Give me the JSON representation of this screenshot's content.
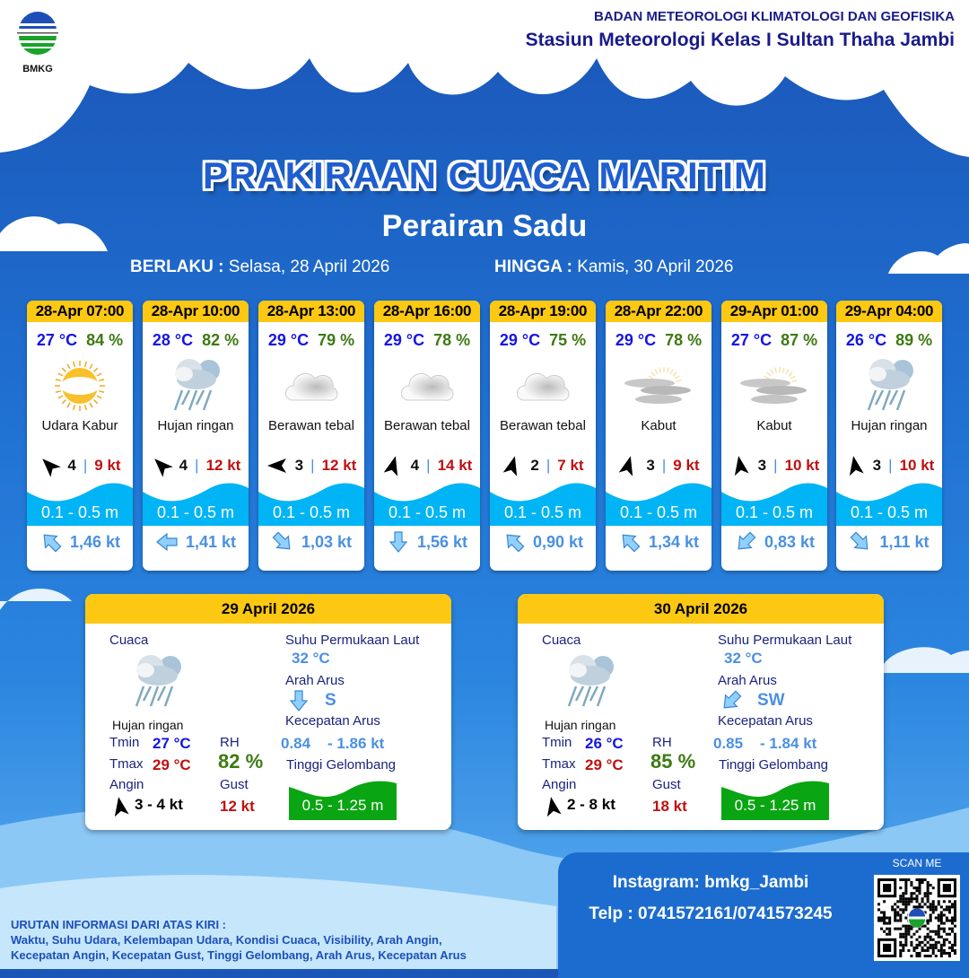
{
  "header": {
    "org": "BADAN METEOROLOGI KLIMATOLOGI DAN GEOFISIKA",
    "station": "Stasiun Meteorologi Kelas I Sultan Thaha Jambi",
    "logo_text": "BMKG"
  },
  "title": "PRAKIRAAN CUACA MARITIM",
  "area": "Perairan Sadu",
  "validity": {
    "from_label": "BERLAKU :",
    "from": "Selasa, 28 April 2026",
    "to_label": "HINGGA :",
    "to": "Kamis, 30 April 2026"
  },
  "colors": {
    "header_yellow": "#fcc812",
    "temp_blue": "#1414e6",
    "rh_green": "#3d7a12",
    "gust_red": "#c01010",
    "wave_cyan": "#00b4f5",
    "wave_green": "#0aa512",
    "current_blue": "#4a90e2"
  },
  "forecasts": [
    {
      "time": "28-Apr 07:00",
      "temp": "27 °C",
      "rh": "84 %",
      "weather": "Udara Kabur",
      "icon": "haze-icon",
      "wind_speed": "4",
      "wind_to_deg": -135,
      "gust": "9 kt",
      "wave": "0.1 - 0.5 m",
      "current_dir_deg": -45,
      "current": "1,46 kt"
    },
    {
      "time": "28-Apr 10:00",
      "temp": "28 °C",
      "rh": "82 %",
      "weather": "Hujan ringan",
      "icon": "rain-icon",
      "wind_speed": "4",
      "wind_to_deg": -135,
      "gust": "12 kt",
      "wave": "0.1 - 0.5 m",
      "current_dir_deg": -90,
      "current": "1,41 kt"
    },
    {
      "time": "28-Apr 13:00",
      "temp": "29 °C",
      "rh": "79 %",
      "weather": "Berawan tebal",
      "icon": "cloud-icon",
      "wind_speed": "3",
      "wind_to_deg": 180,
      "gust": "12 kt",
      "wave": "0.1 - 0.5 m",
      "current_dir_deg": 135,
      "current": "1,03 kt"
    },
    {
      "time": "28-Apr 16:00",
      "temp": "29 °C",
      "rh": "78 %",
      "weather": "Berawan tebal",
      "icon": "cloud-icon",
      "wind_speed": "4",
      "wind_to_deg": -75,
      "gust": "14 kt",
      "wave": "0.1 - 0.5 m",
      "current_dir_deg": 180,
      "current": "1,56 kt"
    },
    {
      "time": "28-Apr 19:00",
      "temp": "29 °C",
      "rh": "75 %",
      "weather": "Berawan tebal",
      "icon": "cloud-icon",
      "wind_speed": "2",
      "wind_to_deg": -75,
      "gust": "7 kt",
      "wave": "0.1 - 0.5 m",
      "current_dir_deg": -45,
      "current": "0,90 kt"
    },
    {
      "time": "28-Apr 22:00",
      "temp": "29 °C",
      "rh": "78 %",
      "weather": "Kabut",
      "icon": "fog-icon",
      "wind_speed": "3",
      "wind_to_deg": -75,
      "gust": "9 kt",
      "wave": "0.1 - 0.5 m",
      "current_dir_deg": -45,
      "current": "1,34 kt"
    },
    {
      "time": "29-Apr 01:00",
      "temp": "27 °C",
      "rh": "87 %",
      "weather": "Kabut",
      "icon": "fog-icon",
      "wind_speed": "3",
      "wind_to_deg": -100,
      "gust": "10 kt",
      "wave": "0.1 - 0.5 m",
      "current_dir_deg": -135,
      "current": "0,83 kt"
    },
    {
      "time": "29-Apr 04:00",
      "temp": "26 °C",
      "rh": "89 %",
      "weather": "Hujan ringan",
      "icon": "rain-icon",
      "wind_speed": "3",
      "wind_to_deg": -100,
      "gust": "10 kt",
      "wave": "0.1 - 0.5 m",
      "current_dir_deg": 135,
      "current": "1,11 kt"
    }
  ],
  "daily": [
    {
      "date": "29 April 2026",
      "weather_label": "Cuaca",
      "weather": "Hujan ringan",
      "icon": "rain-icon",
      "tmin_label": "Tmin",
      "tmin": "27 °C",
      "tmax_label": "Tmax",
      "tmax": "29 °C",
      "rh_label": "RH",
      "rh": "82 %",
      "wind_label": "Angin",
      "wind": "3  - 4 kt",
      "wind_to_deg": -100,
      "gust_label": "Gust",
      "gust": "12 kt",
      "sst_label": "Suhu Permukaan Laut",
      "sst": "32 °C",
      "current_dir_label": "Arah Arus",
      "current_dir": "S",
      "current_dir_deg": 180,
      "current_speed_label": "Kecepatan Arus",
      "current_min": "0.84",
      "current_max": "- 1.86 kt",
      "wave_label": "Tinggi Gelombang",
      "wave": "0.5 - 1.25 m"
    },
    {
      "date": "30 April 2026",
      "weather_label": "Cuaca",
      "weather": "Hujan ringan",
      "icon": "rain-icon",
      "tmin_label": "Tmin",
      "tmin": "26 °C",
      "tmax_label": "Tmax",
      "tmax": "29 °C",
      "rh_label": "RH",
      "rh": "85 %",
      "wind_label": "Angin",
      "wind": "2  - 8 kt",
      "wind_to_deg": -100,
      "gust_label": "Gust",
      "gust": "18 kt",
      "sst_label": "Suhu Permukaan Laut",
      "sst": "32 °C",
      "current_dir_label": "Arah Arus",
      "current_dir": "SW",
      "current_dir_deg": -135,
      "current_speed_label": "Kecepatan Arus",
      "current_min": "0.85",
      "current_max": "- 1.84 kt",
      "wave_label": "Tinggi Gelombang",
      "wave": "0.5 - 1.25 m"
    }
  ],
  "footer": {
    "instagram": "Instagram: bmkg_Jambi",
    "phone": "Telp : 0741572161/0741573245",
    "scan_label": "SCAN ME",
    "legend_title": "URUTAN INFORMASI DARI ATAS KIRI :",
    "legend_line1": "Waktu, Suhu Udara, Kelembapan Udara, Kondisi Cuaca, Visibility, Arah Angin,",
    "legend_line2": "Kecepatan Angin, Kecepatan Gust, Tinggi Gelombang, Arah Arus, Kecepatan Arus"
  }
}
